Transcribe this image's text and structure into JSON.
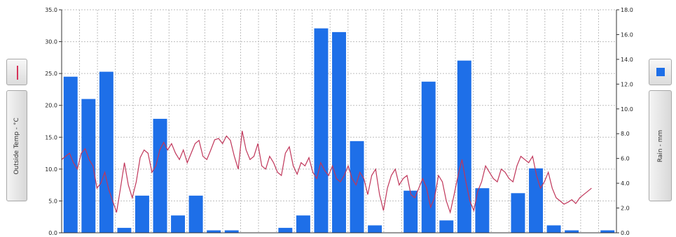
{
  "legend": {
    "left_label": "Outside Temp - °C",
    "right_label": "Rain - mm",
    "left_icon": "red-line-swatch-icon",
    "right_icon": "blue-square-swatch-icon"
  },
  "colors": {
    "bar": "#1e6fe8",
    "line": "#c0365a",
    "grid": "#bdbdbd"
  },
  "chart_data": {
    "type": "bar",
    "title": "",
    "grid": true,
    "x_slot_count": 31,
    "y_left": {
      "label": "Outside Temp - °C",
      "range": [
        0,
        35
      ],
      "ticks": [
        "0.0",
        "5.0",
        "10.0",
        "15.0",
        "20.0",
        "25.0",
        "30.0",
        "35.0"
      ]
    },
    "y_right": {
      "label": "Rain - mm",
      "range": [
        0,
        18
      ],
      "ticks": [
        "0.0",
        "2.0",
        "4.0",
        "6.0",
        "8.0",
        "10.0",
        "12.0",
        "14.0",
        "16.0",
        "18.0"
      ]
    },
    "series": [
      {
        "type": "bar",
        "axis": "right",
        "values": [
          12.6,
          10.8,
          13.0,
          0.4,
          3.0,
          9.2,
          1.4,
          3.0,
          0.2,
          0.2,
          0,
          0,
          0.4,
          1.4,
          16.5,
          16.2,
          7.4,
          0.6,
          0,
          3.4,
          12.2,
          1.0,
          13.9,
          3.6,
          0,
          3.2,
          5.2,
          0.6,
          0.2,
          0,
          0.2
        ]
      },
      {
        "type": "line",
        "axis": "left",
        "values": [
          11.5,
          12.0,
          12.5,
          11.0,
          10.0,
          12.5,
          13.2,
          11.5,
          10.5,
          7.0,
          7.8,
          9.5,
          6.8,
          5.0,
          3.2,
          7.0,
          11.0,
          7.5,
          5.5,
          8.0,
          11.8,
          13.0,
          12.5,
          9.5,
          10.5,
          13.0,
          14.2,
          13.0,
          14.0,
          12.5,
          11.5,
          13.0,
          11.0,
          12.5,
          14.0,
          14.5,
          12.0,
          11.5,
          13.0,
          14.6,
          14.8,
          14.0,
          15.2,
          14.5,
          12.0,
          10.0,
          16.0,
          13.0,
          11.5,
          12.0,
          14.0,
          10.5,
          10.0,
          12.0,
          11.0,
          9.5,
          9.0,
          12.5,
          13.5,
          10.5,
          9.2,
          11.0,
          10.5,
          11.8,
          9.5,
          8.5,
          11.0,
          9.8,
          9.0,
          10.5,
          8.5,
          8.0,
          9.0,
          10.5,
          8.5,
          7.5,
          9.5,
          8.5,
          6.0,
          9.0,
          10.0,
          6.0,
          3.5,
          7.0,
          9.0,
          10.0,
          7.5,
          8.5,
          9.0,
          6.0,
          5.5,
          7.0,
          8.5,
          7.0,
          4.0,
          5.5,
          9.0,
          8.0,
          5.0,
          3.2,
          6.0,
          9.0,
          11.5,
          8.0,
          5.0,
          3.5,
          6.5,
          8.0,
          10.5,
          9.5,
          8.5,
          8.0,
          10.0,
          9.5,
          8.5,
          8.0,
          10.5,
          12.0,
          11.5,
          11.0,
          12.0,
          9.0,
          7.0,
          8.0,
          9.5,
          7.0,
          5.5,
          5.0,
          4.5,
          4.8,
          5.2,
          4.6,
          5.5,
          6.0,
          6.5,
          7.0
        ]
      }
    ]
  }
}
